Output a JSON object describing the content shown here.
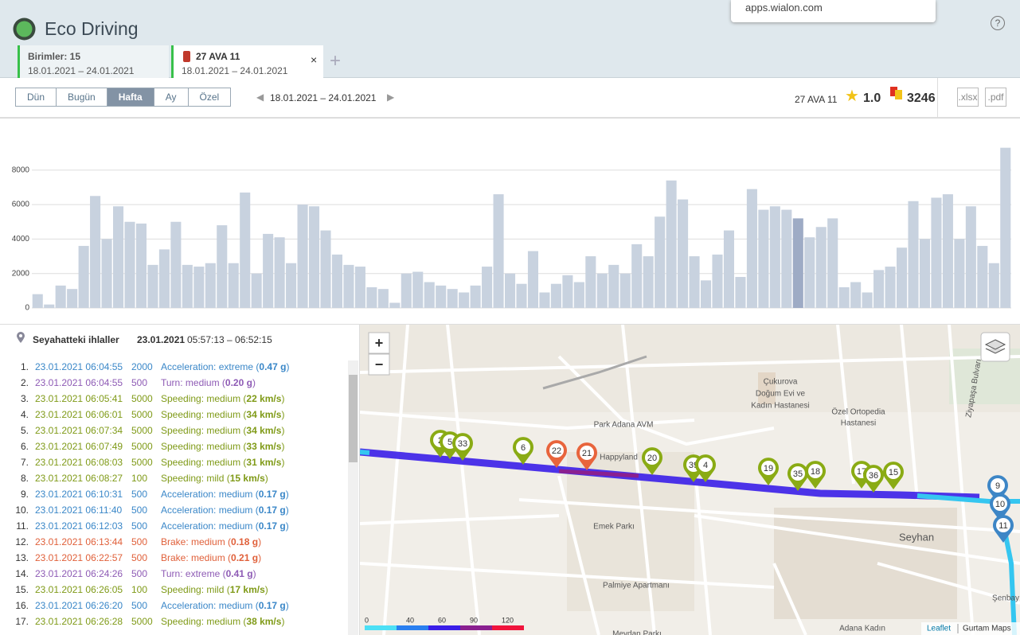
{
  "header": {
    "title": "Eco Driving",
    "popup": "apps.wialon.com",
    "help": "?"
  },
  "tabs": [
    {
      "title": "Birimler: 15",
      "dates": "18.01.2021  –  24.01.2021"
    },
    {
      "title": "27 AVA 11",
      "dates": "18.01.2021  –  24.01.2021"
    }
  ],
  "toolbar": {
    "periods": [
      {
        "label": "Dün"
      },
      {
        "label": "Bugün"
      },
      {
        "label": "Hafta",
        "active": true
      },
      {
        "label": "Ay"
      },
      {
        "label": "Özel"
      }
    ],
    "range": "18.01.2021  –  24.01.2021",
    "unit": "27 AVA 11",
    "rating": "1.0",
    "penalty": "3246",
    "exports": [
      ".xlsx",
      ".pdf"
    ]
  },
  "chart_data": {
    "type": "bar",
    "values": [
      800,
      200,
      1300,
      1100,
      3600,
      6500,
      4000,
      5900,
      5000,
      4900,
      2500,
      3400,
      5000,
      2500,
      2400,
      2600,
      4800,
      2600,
      6700,
      2000,
      4300,
      4100,
      2600,
      6000,
      5900,
      4500,
      3100,
      2500,
      2400,
      1200,
      1100,
      300,
      2000,
      2100,
      1500,
      1300,
      1100,
      900,
      1300,
      2400,
      6600,
      2000,
      1400,
      3300,
      900,
      1400,
      1900,
      1500,
      3000,
      2000,
      2500,
      2000,
      3700,
      3000,
      5300,
      7400,
      6300,
      3000,
      1600,
      3100,
      4500,
      1800,
      6900,
      5700,
      5900,
      5700,
      5200,
      4100,
      4700,
      5200,
      1200,
      1500,
      900,
      2200,
      2400,
      3500,
      6200,
      4000,
      6400,
      6600,
      4000,
      5900,
      3600,
      2600,
      9300
    ],
    "color": "#c8d2df",
    "highlight_color": "#9eabc5",
    "highlight": 66,
    "ylim": [
      0,
      10000
    ],
    "yticks": [
      0,
      2000,
      4000,
      6000,
      8000
    ],
    "grid": true
  },
  "violations": {
    "title": "Seyahatteki ihlaller",
    "date": "23.01.2021",
    "time": "05:57:13 – 06:52:15",
    "rows": [
      {
        "n": "1.",
        "time": "23.01.2021 06:04:55",
        "penalty": "2000",
        "text": "Acceleration: extreme",
        "value": "0.47 g",
        "color": "#3a87c8"
      },
      {
        "n": "2.",
        "time": "23.01.2021 06:04:55",
        "penalty": "500",
        "text": "Turn: medium",
        "value": "0.20 g",
        "color": "#8e5bb5"
      },
      {
        "n": "3.",
        "time": "23.01.2021 06:05:41",
        "penalty": "5000",
        "text": "Speeding: medium",
        "value": "22 km/s",
        "color": "#7f9a17"
      },
      {
        "n": "4.",
        "time": "23.01.2021 06:06:01",
        "penalty": "5000",
        "text": "Speeding: medium",
        "value": "34 km/s",
        "color": "#7f9a17"
      },
      {
        "n": "5.",
        "time": "23.01.2021 06:07:34",
        "penalty": "5000",
        "text": "Speeding: medium",
        "value": "34 km/s",
        "color": "#7f9a17"
      },
      {
        "n": "6.",
        "time": "23.01.2021 06:07:49",
        "penalty": "5000",
        "text": "Speeding: medium",
        "value": "33 km/s",
        "color": "#7f9a17"
      },
      {
        "n": "7.",
        "time": "23.01.2021 06:08:03",
        "penalty": "5000",
        "text": "Speeding: medium",
        "value": "31 km/s",
        "color": "#7f9a17"
      },
      {
        "n": "8.",
        "time": "23.01.2021 06:08:27",
        "penalty": "100",
        "text": "Speeding: mild",
        "value": "15 km/s",
        "color": "#7f9a17"
      },
      {
        "n": "9.",
        "time": "23.01.2021 06:10:31",
        "penalty": "500",
        "text": "Acceleration: medium",
        "value": "0.17 g",
        "color": "#3a87c8"
      },
      {
        "n": "10.",
        "time": "23.01.2021 06:11:40",
        "penalty": "500",
        "text": "Acceleration: medium",
        "value": "0.17 g",
        "color": "#3a87c8"
      },
      {
        "n": "11.",
        "time": "23.01.2021 06:12:03",
        "penalty": "500",
        "text": "Acceleration: medium",
        "value": "0.17 g",
        "color": "#3a87c8"
      },
      {
        "n": "12.",
        "time": "23.01.2021 06:13:44",
        "penalty": "500",
        "text": "Brake: medium",
        "value": "0.18 g",
        "color": "#e0603a"
      },
      {
        "n": "13.",
        "time": "23.01.2021 06:22:57",
        "penalty": "500",
        "text": "Brake: medium",
        "value": "0.21 g",
        "color": "#e0603a"
      },
      {
        "n": "14.",
        "time": "23.01.2021 06:24:26",
        "penalty": "500",
        "text": "Turn: extreme",
        "value": "0.41 g",
        "color": "#8e5bb5"
      },
      {
        "n": "15.",
        "time": "23.01.2021 06:26:05",
        "penalty": "100",
        "text": "Speeding: mild",
        "value": "17 km/s",
        "color": "#7f9a17"
      },
      {
        "n": "16.",
        "time": "23.01.2021 06:26:20",
        "penalty": "500",
        "text": "Acceleration: medium",
        "value": "0.17 g",
        "color": "#3a87c8"
      },
      {
        "n": "17.",
        "time": "23.01.2021 06:26:28",
        "penalty": "5000",
        "text": "Speeding: medium",
        "value": "38 km/s",
        "color": "#7f9a17"
      }
    ]
  },
  "map": {
    "zoom_in": "+",
    "zoom_out": "−",
    "places": [
      "Park Adana AVM",
      "Çukurova",
      "Doğum Evi ve",
      "Kadın Hastanesi",
      "Özel Ortopedia",
      "Hastanesi",
      "Happyland",
      "Emek Parkı",
      "Seyhan",
      "Palmiye Apartmanı",
      "Meydan Parkı",
      "Adana Kadın",
      "Ziyapaşa Bulvarı",
      "Şenbay"
    ],
    "markers": [
      {
        "label": "2",
        "color": "#8aab14"
      },
      {
        "label": "5",
        "color": "#8aab14"
      },
      {
        "label": "33",
        "color": "#8aab14"
      },
      {
        "label": "6",
        "color": "#8aab14"
      },
      {
        "label": "22",
        "color": "#e8643c"
      },
      {
        "label": "21",
        "color": "#e8643c"
      },
      {
        "label": "20",
        "color": "#8aab14"
      },
      {
        "label": "39",
        "color": "#8aab14"
      },
      {
        "label": "4",
        "color": "#8aab14"
      },
      {
        "label": "19",
        "color": "#8aab14"
      },
      {
        "label": "35",
        "color": "#8aab14"
      },
      {
        "label": "18",
        "color": "#8aab14"
      },
      {
        "label": "17",
        "color": "#8aab14"
      },
      {
        "label": "36",
        "color": "#8aab14"
      },
      {
        "label": "15",
        "color": "#8aab14"
      },
      {
        "label": "9",
        "color": "#3d86c6"
      },
      {
        "label": "10",
        "color": "#3d86c6"
      },
      {
        "label": "11",
        "color": "#3d86c6"
      }
    ],
    "speed_scale": [
      0,
      40,
      60,
      90,
      120
    ],
    "attribution": "Leaflet",
    "attribution2": "Gurtam Maps"
  }
}
